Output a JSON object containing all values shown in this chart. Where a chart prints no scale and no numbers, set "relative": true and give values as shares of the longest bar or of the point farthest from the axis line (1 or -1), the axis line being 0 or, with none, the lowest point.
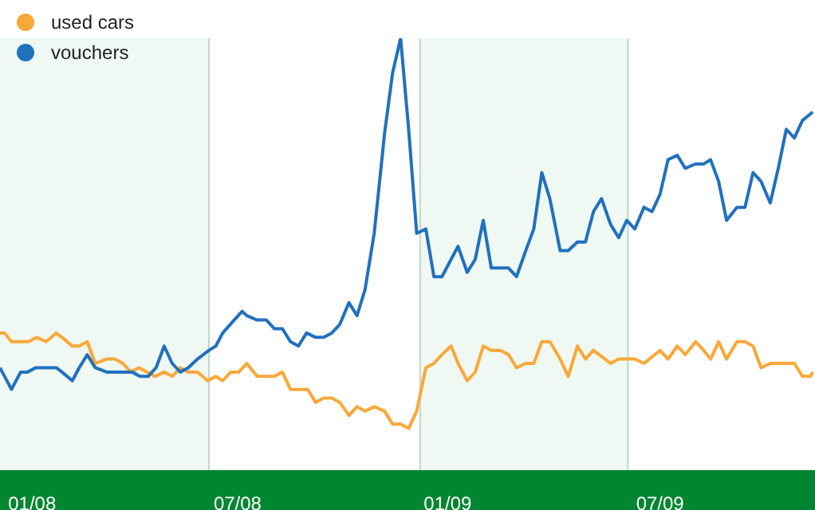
{
  "chart_data": {
    "type": "line",
    "relative": true,
    "xlim": [
      "2008-01-01",
      "2009-12-11"
    ],
    "xticks": [
      {
        "value": "2008-01-29",
        "label": "01/08"
      },
      {
        "value": "2008-07-26",
        "label": "07/08"
      },
      {
        "value": "2009-01-25",
        "label": "01/09"
      },
      {
        "value": "2009-07-29",
        "label": "07/09"
      }
    ],
    "legend": "top left",
    "marker": "none",
    "line_style": "solid",
    "ref_lines": [
      {
        "axis": "x",
        "value": "2008-07-01",
        "color": "#bcd9c9"
      },
      {
        "axis": "x",
        "value": "2009-01-01",
        "color": "#bcd9c9"
      },
      {
        "axis": "x",
        "value": "2009-07-01",
        "color": "#bcd9c9"
      }
    ],
    "bands": [
      {
        "axis": "x",
        "from": "2008-01-01",
        "to": "2008-07-01",
        "color": "#eff8f2"
      },
      {
        "axis": "x",
        "from": "2009-01-01",
        "to": "2009-07-01",
        "color": "#eff8f2"
      }
    ],
    "series": [
      {
        "name": "used cars",
        "color": "#f9a83a",
        "x": [
          "2008-01-01",
          "2008-01-05",
          "2008-01-11",
          "2008-01-26",
          "2008-02-02",
          "2008-02-10",
          "2008-02-19",
          "2008-02-24",
          "2008-03-04",
          "2008-03-10",
          "2008-03-17",
          "2008-03-24",
          "2008-04-03",
          "2008-04-10",
          "2008-04-17",
          "2008-04-24",
          "2008-05-01",
          "2008-05-08",
          "2008-05-15",
          "2008-05-23",
          "2008-05-30",
          "2008-06-06",
          "2008-06-13",
          "2008-06-21",
          "2008-06-30",
          "2008-07-07",
          "2008-07-13",
          "2008-07-20",
          "2008-07-27",
          "2008-08-03",
          "2008-08-12",
          "2008-08-20",
          "2008-08-27",
          "2008-09-03",
          "2008-09-10",
          "2008-09-25",
          "2008-10-02",
          "2008-10-09",
          "2008-10-16",
          "2008-10-23",
          "2008-10-31",
          "2008-11-07",
          "2008-11-14",
          "2008-11-22",
          "2008-12-01",
          "2008-12-08",
          "2008-12-15",
          "2008-12-22",
          "2008-12-29",
          "2009-01-06",
          "2009-01-13",
          "2009-01-20",
          "2009-01-28",
          "2009-02-03",
          "2009-02-11",
          "2009-02-18",
          "2009-02-25",
          "2009-03-04",
          "2009-03-12",
          "2009-03-19",
          "2009-03-26",
          "2009-04-03",
          "2009-04-10",
          "2009-04-17",
          "2009-04-24",
          "2009-05-03",
          "2009-05-10",
          "2009-05-18",
          "2009-05-25",
          "2009-06-01",
          "2009-06-16",
          "2009-06-23",
          "2009-07-07",
          "2009-07-15",
          "2009-07-29",
          "2009-08-05",
          "2009-08-13",
          "2009-08-20",
          "2009-08-29",
          "2009-09-05",
          "2009-09-11",
          "2009-09-18",
          "2009-09-25",
          "2009-10-04",
          "2009-10-11",
          "2009-10-18",
          "2009-10-25",
          "2009-11-02",
          "2009-11-23",
          "2009-11-30",
          "2009-12-07",
          "2009-12-09"
        ],
        "values": [
          0.32,
          0.32,
          0.3,
          0.3,
          0.31,
          0.3,
          0.32,
          0.31,
          0.29,
          0.29,
          0.3,
          0.25,
          0.26,
          0.26,
          0.25,
          0.23,
          0.24,
          0.23,
          0.22,
          0.23,
          0.22,
          0.24,
          0.23,
          0.23,
          0.21,
          0.22,
          0.21,
          0.23,
          0.23,
          0.25,
          0.22,
          0.22,
          0.22,
          0.23,
          0.19,
          0.19,
          0.16,
          0.17,
          0.17,
          0.16,
          0.13,
          0.15,
          0.14,
          0.15,
          0.14,
          0.11,
          0.11,
          0.1,
          0.14,
          0.24,
          0.25,
          0.27,
          0.29,
          0.25,
          0.21,
          0.23,
          0.29,
          0.28,
          0.28,
          0.27,
          0.24,
          0.25,
          0.25,
          0.3,
          0.3,
          0.26,
          0.22,
          0.29,
          0.26,
          0.28,
          0.25,
          0.26,
          0.26,
          0.25,
          0.28,
          0.26,
          0.29,
          0.27,
          0.3,
          0.28,
          0.26,
          0.3,
          0.26,
          0.3,
          0.3,
          0.29,
          0.24,
          0.25,
          0.25,
          0.22,
          0.22,
          0.23
        ]
      },
      {
        "name": "vouchers",
        "color": "#2171bd",
        "x": [
          "2008-01-01",
          "2008-01-05",
          "2008-01-11",
          "2008-01-19",
          "2008-01-25",
          "2008-02-01",
          "2008-02-19",
          "2008-02-24",
          "2008-03-04",
          "2008-03-10",
          "2008-03-17",
          "2008-03-24",
          "2008-04-03",
          "2008-04-25",
          "2008-05-02",
          "2008-05-09",
          "2008-05-16",
          "2008-05-23",
          "2008-05-30",
          "2008-06-06",
          "2008-06-13",
          "2008-06-21",
          "2008-07-01",
          "2008-07-07",
          "2008-07-13",
          "2008-07-23",
          "2008-07-30",
          "2008-08-03",
          "2008-08-12",
          "2008-08-20",
          "2008-08-27",
          "2008-09-03",
          "2008-09-10",
          "2008-09-17",
          "2008-09-24",
          "2008-10-02",
          "2008-10-09",
          "2008-10-16",
          "2008-10-23",
          "2008-10-31",
          "2008-11-07",
          "2008-11-14",
          "2008-11-22",
          "2008-12-01",
          "2008-12-08",
          "2008-12-15",
          "2008-12-22",
          "2008-12-29",
          "2009-01-06",
          "2009-01-13",
          "2009-01-20",
          "2009-01-28",
          "2009-02-03",
          "2009-02-11",
          "2009-02-18",
          "2009-02-25",
          "2009-03-04",
          "2009-03-19",
          "2009-03-26",
          "2009-04-03",
          "2009-04-10",
          "2009-04-17",
          "2009-04-24",
          "2009-05-03",
          "2009-05-10",
          "2009-05-18",
          "2009-05-25",
          "2009-06-01",
          "2009-06-08",
          "2009-06-16",
          "2009-06-23",
          "2009-06-30",
          "2009-07-07",
          "2009-07-15",
          "2009-07-22",
          "2009-07-29",
          "2009-08-05",
          "2009-08-13",
          "2009-08-20",
          "2009-08-29",
          "2009-09-05",
          "2009-09-11",
          "2009-09-18",
          "2009-09-25",
          "2009-10-04",
          "2009-10-11",
          "2009-10-18",
          "2009-10-25",
          "2009-11-02",
          "2009-11-09",
          "2009-11-16",
          "2009-11-23",
          "2009-11-30",
          "2009-12-09"
        ],
        "values": [
          0.24,
          0.22,
          0.19,
          0.23,
          0.23,
          0.24,
          0.24,
          0.23,
          0.21,
          0.24,
          0.27,
          0.24,
          0.23,
          0.23,
          0.22,
          0.22,
          0.24,
          0.29,
          0.25,
          0.23,
          0.24,
          0.26,
          0.28,
          0.29,
          0.32,
          0.35,
          0.37,
          0.36,
          0.35,
          0.35,
          0.33,
          0.33,
          0.3,
          0.29,
          0.32,
          0.31,
          0.31,
          0.32,
          0.34,
          0.39,
          0.36,
          0.42,
          0.55,
          0.78,
          0.92,
          1,
          0.79,
          0.55,
          0.56,
          0.45,
          0.45,
          0.49,
          0.52,
          0.46,
          0.49,
          0.58,
          0.47,
          0.47,
          0.45,
          0.51,
          0.56,
          0.69,
          0.63,
          0.51,
          0.51,
          0.53,
          0.53,
          0.6,
          0.63,
          0.57,
          0.54,
          0.58,
          0.56,
          0.61,
          0.6,
          0.64,
          0.72,
          0.73,
          0.7,
          0.71,
          0.71,
          0.72,
          0.67,
          0.58,
          0.61,
          0.61,
          0.69,
          0.67,
          0.62,
          0.7,
          0.79,
          0.77,
          0.81,
          0.83
        ]
      }
    ]
  }
}
